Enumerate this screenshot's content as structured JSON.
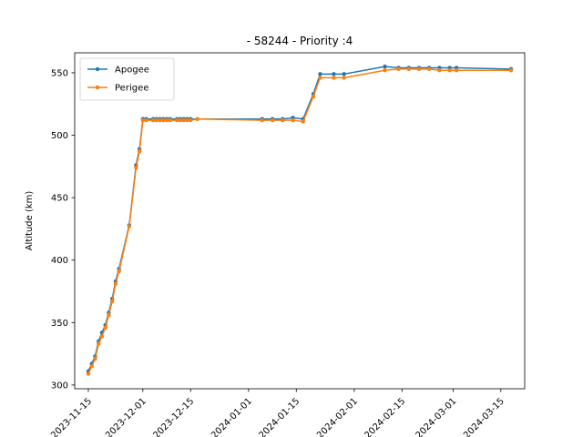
{
  "chart_data": {
    "type": "line",
    "title": "- 58244 - Priority :4",
    "xlabel": "",
    "ylabel": "Altitude (km)",
    "ylim": [
      297,
      566
    ],
    "xlim": [
      "2023-11-11",
      "2024-03-22"
    ],
    "yticks": [
      300,
      350,
      400,
      450,
      500,
      550
    ],
    "xticks": [
      "2023-11-15",
      "2023-12-01",
      "2023-12-15",
      "2024-01-01",
      "2024-01-15",
      "2024-02-01",
      "2024-02-15",
      "2024-03-01",
      "2024-03-15"
    ],
    "legend": "upper-left",
    "grid": false,
    "series": [
      {
        "name": "Apogee",
        "color": "#1f77b4",
        "points": [
          [
            "2023-11-15",
            311
          ],
          [
            "2023-11-16",
            317
          ],
          [
            "2023-11-17",
            323
          ],
          [
            "2023-11-18",
            335
          ],
          [
            "2023-11-19",
            342
          ],
          [
            "2023-11-20",
            348
          ],
          [
            "2023-11-21",
            358
          ],
          [
            "2023-11-22",
            369
          ],
          [
            "2023-11-23",
            383
          ],
          [
            "2023-11-24",
            393
          ],
          [
            "2023-11-27",
            428
          ],
          [
            "2023-11-29",
            476
          ],
          [
            "2023-11-30",
            489
          ],
          [
            "2023-12-01",
            513
          ],
          [
            "2023-12-02",
            513
          ],
          [
            "2023-12-04",
            513
          ],
          [
            "2023-12-05",
            513
          ],
          [
            "2023-12-06",
            513
          ],
          [
            "2023-12-07",
            513
          ],
          [
            "2023-12-08",
            513
          ],
          [
            "2023-12-09",
            513
          ],
          [
            "2023-12-11",
            513
          ],
          [
            "2023-12-12",
            513
          ],
          [
            "2023-12-13",
            513
          ],
          [
            "2023-12-14",
            513
          ],
          [
            "2023-12-15",
            513
          ],
          [
            "2023-12-17",
            513
          ],
          [
            "2024-01-05",
            513
          ],
          [
            "2024-01-08",
            513
          ],
          [
            "2024-01-11",
            513
          ],
          [
            "2024-01-14",
            514
          ],
          [
            "2024-01-17",
            513
          ],
          [
            "2024-01-20",
            533
          ],
          [
            "2024-01-22",
            549
          ],
          [
            "2024-01-26",
            549
          ],
          [
            "2024-01-29",
            549
          ],
          [
            "2024-02-10",
            555
          ],
          [
            "2024-02-14",
            554
          ],
          [
            "2024-02-17",
            554
          ],
          [
            "2024-02-20",
            554
          ],
          [
            "2024-02-23",
            554
          ],
          [
            "2024-02-26",
            554
          ],
          [
            "2024-02-29",
            554
          ],
          [
            "2024-03-02",
            554
          ],
          [
            "2024-03-18",
            553
          ]
        ]
      },
      {
        "name": "Perigee",
        "color": "#ff7f0e",
        "points": [
          [
            "2023-11-15",
            309
          ],
          [
            "2023-11-16",
            315
          ],
          [
            "2023-11-17",
            321
          ],
          [
            "2023-11-18",
            333
          ],
          [
            "2023-11-19",
            339
          ],
          [
            "2023-11-20",
            346
          ],
          [
            "2023-11-21",
            356
          ],
          [
            "2023-11-22",
            367
          ],
          [
            "2023-11-23",
            381
          ],
          [
            "2023-11-24",
            391
          ],
          [
            "2023-11-27",
            427
          ],
          [
            "2023-11-29",
            474
          ],
          [
            "2023-11-30",
            487
          ],
          [
            "2023-12-01",
            512
          ],
          [
            "2023-12-02",
            512
          ],
          [
            "2023-12-04",
            512
          ],
          [
            "2023-12-05",
            512
          ],
          [
            "2023-12-06",
            512
          ],
          [
            "2023-12-07",
            512
          ],
          [
            "2023-12-08",
            512
          ],
          [
            "2023-12-09",
            512
          ],
          [
            "2023-12-11",
            512
          ],
          [
            "2023-12-12",
            512
          ],
          [
            "2023-12-13",
            512
          ],
          [
            "2023-12-14",
            512
          ],
          [
            "2023-12-15",
            512
          ],
          [
            "2023-12-17",
            513
          ],
          [
            "2024-01-05",
            512
          ],
          [
            "2024-01-08",
            512
          ],
          [
            "2024-01-11",
            512
          ],
          [
            "2024-01-14",
            512
          ],
          [
            "2024-01-17",
            511
          ],
          [
            "2024-01-20",
            531
          ],
          [
            "2024-01-22",
            546
          ],
          [
            "2024-01-26",
            546
          ],
          [
            "2024-01-29",
            546
          ],
          [
            "2024-02-10",
            552
          ],
          [
            "2024-02-14",
            553
          ],
          [
            "2024-02-17",
            553
          ],
          [
            "2024-02-20",
            553
          ],
          [
            "2024-02-23",
            553
          ],
          [
            "2024-02-26",
            552
          ],
          [
            "2024-02-29",
            552
          ],
          [
            "2024-03-02",
            552
          ],
          [
            "2024-03-18",
            552
          ]
        ]
      }
    ]
  }
}
